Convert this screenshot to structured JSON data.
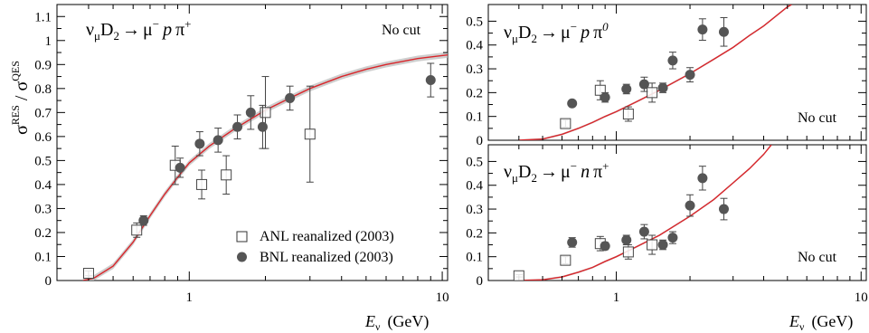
{
  "chart_data": [
    {
      "type": "scatter",
      "id": "left",
      "reaction_pre": "ν",
      "reaction_sub": "μ",
      "reaction_mid": "D",
      "reaction_sub2": "2",
      "reaction_arrow": "→",
      "reaction_lepton": "μ",
      "reaction_lepton_sup": "−",
      "reaction_nucleon": "p",
      "reaction_pion": "π",
      "reaction_pion_sup": "+",
      "cut_label": "No cut",
      "ylabel_main": "σ",
      "ylabel_sup1": "RES",
      "ylabel_slash": " / σ",
      "ylabel_sup2": "QES",
      "xlabel_var": "E",
      "xlabel_sub": "ν",
      "xlabel_unit": "(GeV)",
      "xscale": "log",
      "xlim": [
        0.3,
        10.5
      ],
      "ylim": [
        0,
        1.15
      ],
      "xticks_major": [
        1,
        10
      ],
      "xtick_labels": [
        "1",
        "10"
      ],
      "yticks": [
        0,
        0.1,
        0.2,
        0.3,
        0.4,
        0.5,
        0.6,
        0.7,
        0.8,
        0.9,
        1,
        1.1
      ],
      "ytick_labels": [
        "0",
        "0.1",
        "0.2",
        "0.3",
        "0.4",
        "0.5",
        "0.6",
        "0.7",
        "0.8",
        "0.9",
        "1",
        "1.1"
      ],
      "legend": [
        {
          "label": "ANL reanalized (2003)",
          "marker": "open-square"
        },
        {
          "label": "BNL reanalized (2003)",
          "marker": "filled-circle"
        }
      ],
      "series": [
        {
          "name": "ANL reanalized (2003)",
          "marker": "open-square",
          "points": [
            {
              "x": 0.4,
              "y": 0.03,
              "err": 0.01
            },
            {
              "x": 0.62,
              "y": 0.21,
              "err": 0.03
            },
            {
              "x": 0.88,
              "y": 0.48,
              "err": 0.08
            },
            {
              "x": 1.12,
              "y": 0.4,
              "err": 0.06
            },
            {
              "x": 1.4,
              "y": 0.44,
              "err": 0.08
            },
            {
              "x": 2.0,
              "y": 0.7,
              "err": 0.15
            },
            {
              "x": 3.0,
              "y": 0.61,
              "err": 0.2
            }
          ]
        },
        {
          "name": "BNL reanalized (2003)",
          "marker": "filled-circle",
          "points": [
            {
              "x": 0.66,
              "y": 0.25,
              "err": 0.02
            },
            {
              "x": 0.92,
              "y": 0.47,
              "err": 0.04
            },
            {
              "x": 1.1,
              "y": 0.57,
              "err": 0.05
            },
            {
              "x": 1.3,
              "y": 0.585,
              "err": 0.05
            },
            {
              "x": 1.55,
              "y": 0.64,
              "err": 0.05
            },
            {
              "x": 1.75,
              "y": 0.7,
              "err": 0.07
            },
            {
              "x": 1.95,
              "y": 0.64,
              "err": 0.09
            },
            {
              "x": 2.5,
              "y": 0.76,
              "err": 0.05
            },
            {
              "x": 9.0,
              "y": 0.835,
              "err": 0.07
            }
          ]
        }
      ],
      "curve": [
        [
          0.38,
          0.0
        ],
        [
          0.42,
          0.01
        ],
        [
          0.5,
          0.06
        ],
        [
          0.6,
          0.16
        ],
        [
          0.7,
          0.27
        ],
        [
          0.8,
          0.36
        ],
        [
          0.9,
          0.43
        ],
        [
          1.0,
          0.49
        ],
        [
          1.2,
          0.56
        ],
        [
          1.5,
          0.63
        ],
        [
          2.0,
          0.71
        ],
        [
          2.5,
          0.76
        ],
        [
          3.0,
          0.8
        ],
        [
          4.0,
          0.85
        ],
        [
          5.0,
          0.88
        ],
        [
          6.0,
          0.9
        ],
        [
          8.0,
          0.925
        ],
        [
          10.5,
          0.94
        ]
      ],
      "band_halfwidth": 0.012
    },
    {
      "type": "scatter",
      "id": "top-right",
      "reaction_pre": "ν",
      "reaction_sub": "μ",
      "reaction_mid": "D",
      "reaction_sub2": "2",
      "reaction_arrow": "→",
      "reaction_lepton": "μ",
      "reaction_lepton_sup": "−",
      "reaction_nucleon": "p",
      "reaction_pion": "π",
      "reaction_pion_sup": "0",
      "cut_label": "No cut",
      "xscale": "log",
      "xlim": [
        0.3,
        10.5
      ],
      "ylim": [
        0,
        0.57
      ],
      "xticks_major": [
        1,
        10
      ],
      "yticks": [
        0,
        0.1,
        0.2,
        0.3,
        0.4,
        0.5
      ],
      "ytick_labels": [
        "0",
        "0.1",
        "0.2",
        "0.3",
        "0.4",
        "0.5"
      ],
      "series": [
        {
          "name": "ANL",
          "marker": "open-square",
          "points": [
            {
              "x": 0.62,
              "y": 0.07,
              "err": 0.015
            },
            {
              "x": 0.86,
              "y": 0.21,
              "err": 0.04
            },
            {
              "x": 1.12,
              "y": 0.11,
              "err": 0.03
            },
            {
              "x": 1.4,
              "y": 0.2,
              "err": 0.04
            }
          ]
        },
        {
          "name": "BNL",
          "marker": "filled-circle",
          "points": [
            {
              "x": 0.66,
              "y": 0.155,
              "err": 0.005
            },
            {
              "x": 0.9,
              "y": 0.18,
              "err": 0.02
            },
            {
              "x": 1.1,
              "y": 0.215,
              "err": 0.02
            },
            {
              "x": 1.3,
              "y": 0.235,
              "err": 0.03
            },
            {
              "x": 1.55,
              "y": 0.22,
              "err": 0.02
            },
            {
              "x": 1.7,
              "y": 0.335,
              "err": 0.035
            },
            {
              "x": 2.0,
              "y": 0.275,
              "err": 0.03
            },
            {
              "x": 2.25,
              "y": 0.465,
              "err": 0.045
            },
            {
              "x": 2.75,
              "y": 0.455,
              "err": 0.06
            }
          ]
        }
      ],
      "curve": [
        [
          0.4,
          0.0
        ],
        [
          0.5,
          0.005
        ],
        [
          0.6,
          0.025
        ],
        [
          0.7,
          0.05
        ],
        [
          0.8,
          0.075
        ],
        [
          0.9,
          0.1
        ],
        [
          1.0,
          0.12
        ],
        [
          1.2,
          0.16
        ],
        [
          1.5,
          0.21
        ],
        [
          2.0,
          0.28
        ],
        [
          2.5,
          0.34
        ],
        [
          3.0,
          0.39
        ],
        [
          3.5,
          0.44
        ],
        [
          4.0,
          0.48
        ],
        [
          5.0,
          0.56
        ],
        [
          5.2,
          0.57
        ]
      ],
      "band_halfwidth": 0.004
    },
    {
      "type": "scatter",
      "id": "bottom-right",
      "reaction_pre": "ν",
      "reaction_sub": "μ",
      "reaction_mid": "D",
      "reaction_sub2": "2",
      "reaction_arrow": "→",
      "reaction_lepton": "μ",
      "reaction_lepton_sup": "−",
      "reaction_nucleon": "n",
      "reaction_pion": "π",
      "reaction_pion_sup": "+",
      "cut_label": "No cut",
      "xlabel_var": "E",
      "xlabel_sub": "ν",
      "xlabel_unit": "(GeV)",
      "xscale": "log",
      "xlim": [
        0.3,
        10.5
      ],
      "ylim": [
        0,
        0.57
      ],
      "xticks_major": [
        1,
        10
      ],
      "xtick_labels": [
        "1",
        "10"
      ],
      "yticks": [
        0,
        0.1,
        0.2,
        0.3,
        0.4,
        0.5
      ],
      "ytick_labels": [
        "0",
        "0.1",
        "0.2",
        "0.3",
        "0.4",
        "0.5"
      ],
      "series": [
        {
          "name": "ANL",
          "marker": "open-square",
          "points": [
            {
              "x": 0.4,
              "y": 0.02,
              "err": 0.005
            },
            {
              "x": 0.62,
              "y": 0.085,
              "err": 0.015
            },
            {
              "x": 0.86,
              "y": 0.155,
              "err": 0.03
            },
            {
              "x": 1.12,
              "y": 0.12,
              "err": 0.03
            },
            {
              "x": 1.4,
              "y": 0.15,
              "err": 0.04
            }
          ]
        },
        {
          "name": "BNL",
          "marker": "filled-circle",
          "points": [
            {
              "x": 0.66,
              "y": 0.16,
              "err": 0.02
            },
            {
              "x": 0.9,
              "y": 0.145,
              "err": 0.015
            },
            {
              "x": 1.1,
              "y": 0.17,
              "err": 0.02
            },
            {
              "x": 1.3,
              "y": 0.205,
              "err": 0.03
            },
            {
              "x": 1.55,
              "y": 0.15,
              "err": 0.02
            },
            {
              "x": 1.7,
              "y": 0.18,
              "err": 0.025
            },
            {
              "x": 2.0,
              "y": 0.315,
              "err": 0.045
            },
            {
              "x": 2.25,
              "y": 0.43,
              "err": 0.05
            },
            {
              "x": 2.75,
              "y": 0.3,
              "err": 0.045
            }
          ]
        }
      ],
      "curve": [
        [
          0.4,
          0.0
        ],
        [
          0.5,
          0.003
        ],
        [
          0.6,
          0.015
        ],
        [
          0.7,
          0.035
        ],
        [
          0.8,
          0.055
        ],
        [
          0.9,
          0.08
        ],
        [
          1.0,
          0.1
        ],
        [
          1.2,
          0.14
        ],
        [
          1.5,
          0.19
        ],
        [
          2.0,
          0.27
        ],
        [
          2.5,
          0.34
        ],
        [
          3.0,
          0.41
        ],
        [
          3.5,
          0.47
        ],
        [
          4.0,
          0.53
        ],
        [
          4.3,
          0.57
        ]
      ],
      "band_halfwidth": 0.004
    }
  ]
}
